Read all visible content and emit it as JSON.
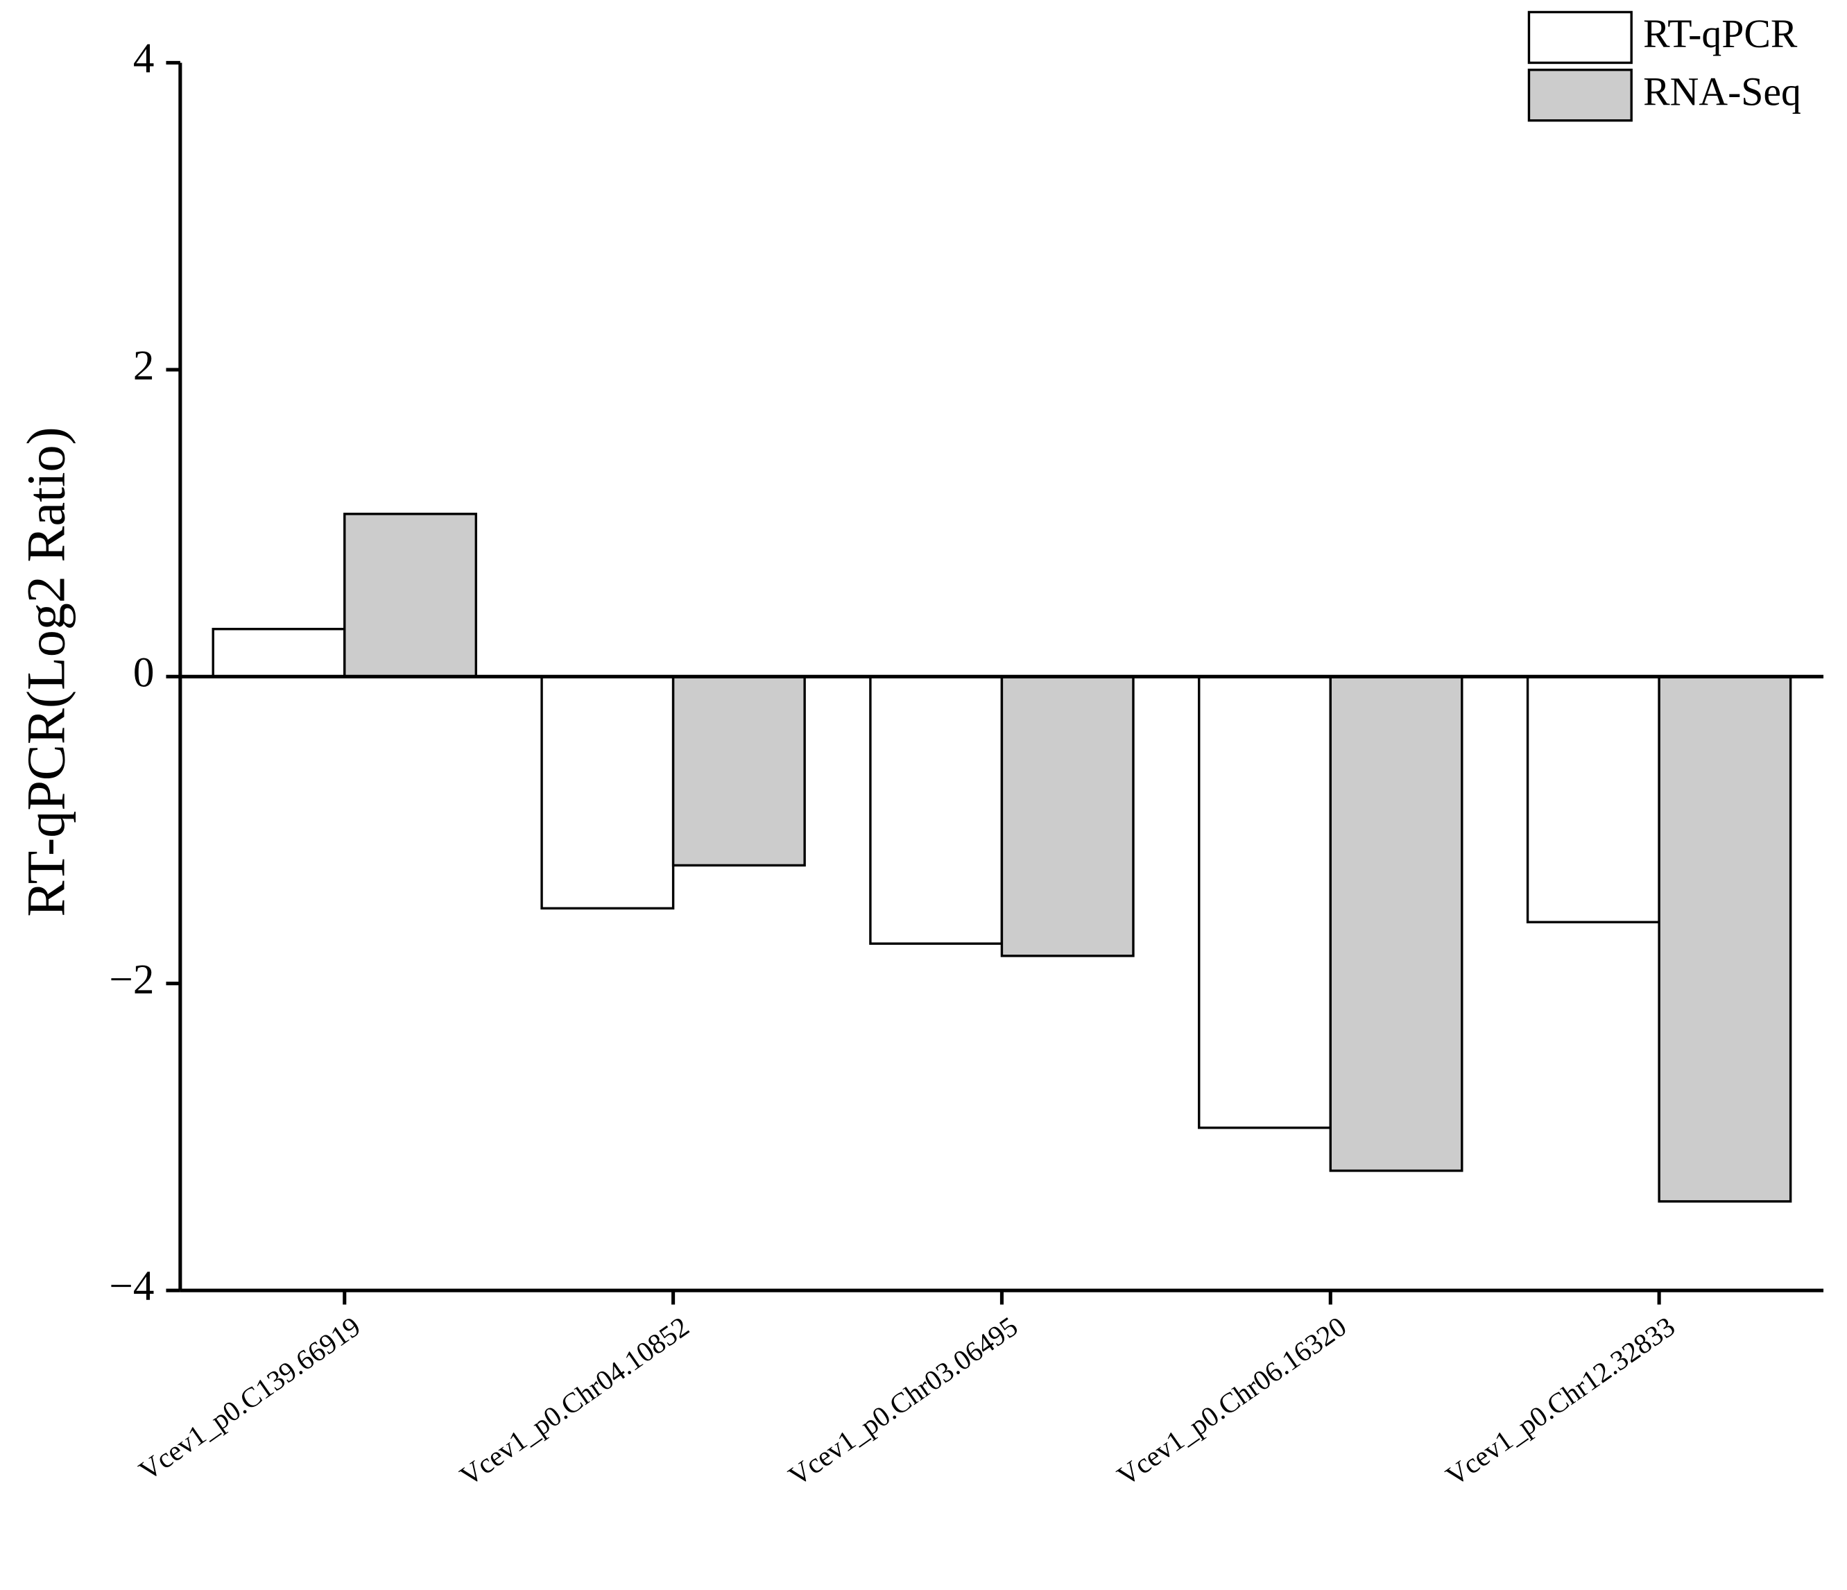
{
  "chart_data": {
    "type": "bar",
    "y_label": "RT-qPCR(Log2 Ratio)",
    "categories": [
      "Vcev1_p0.C139.66919",
      "Vcev1_p0.Chr04.10852",
      "Vcev1_p0.Chr03.06495",
      "Vcev1_p0.Chr06.16320",
      "Vcev1_p0.Chr12.32833"
    ],
    "series": [
      {
        "name": "RT-qPCR",
        "color": "#ffffff",
        "values": [
          0.31,
          -1.51,
          -1.74,
          -2.94,
          -1.6
        ]
      },
      {
        "name": "RNA-Seq",
        "color": "#cccccc",
        "values": [
          1.06,
          -1.23,
          -1.82,
          -3.22,
          -3.42
        ]
      }
    ],
    "ylim": [
      -4,
      4
    ],
    "yticks": [
      {
        "value": -4,
        "label": "−4"
      },
      {
        "value": -2,
        "label": "−2"
      },
      0,
      2,
      4
    ],
    "legend": "upper right",
    "grid": false
  }
}
